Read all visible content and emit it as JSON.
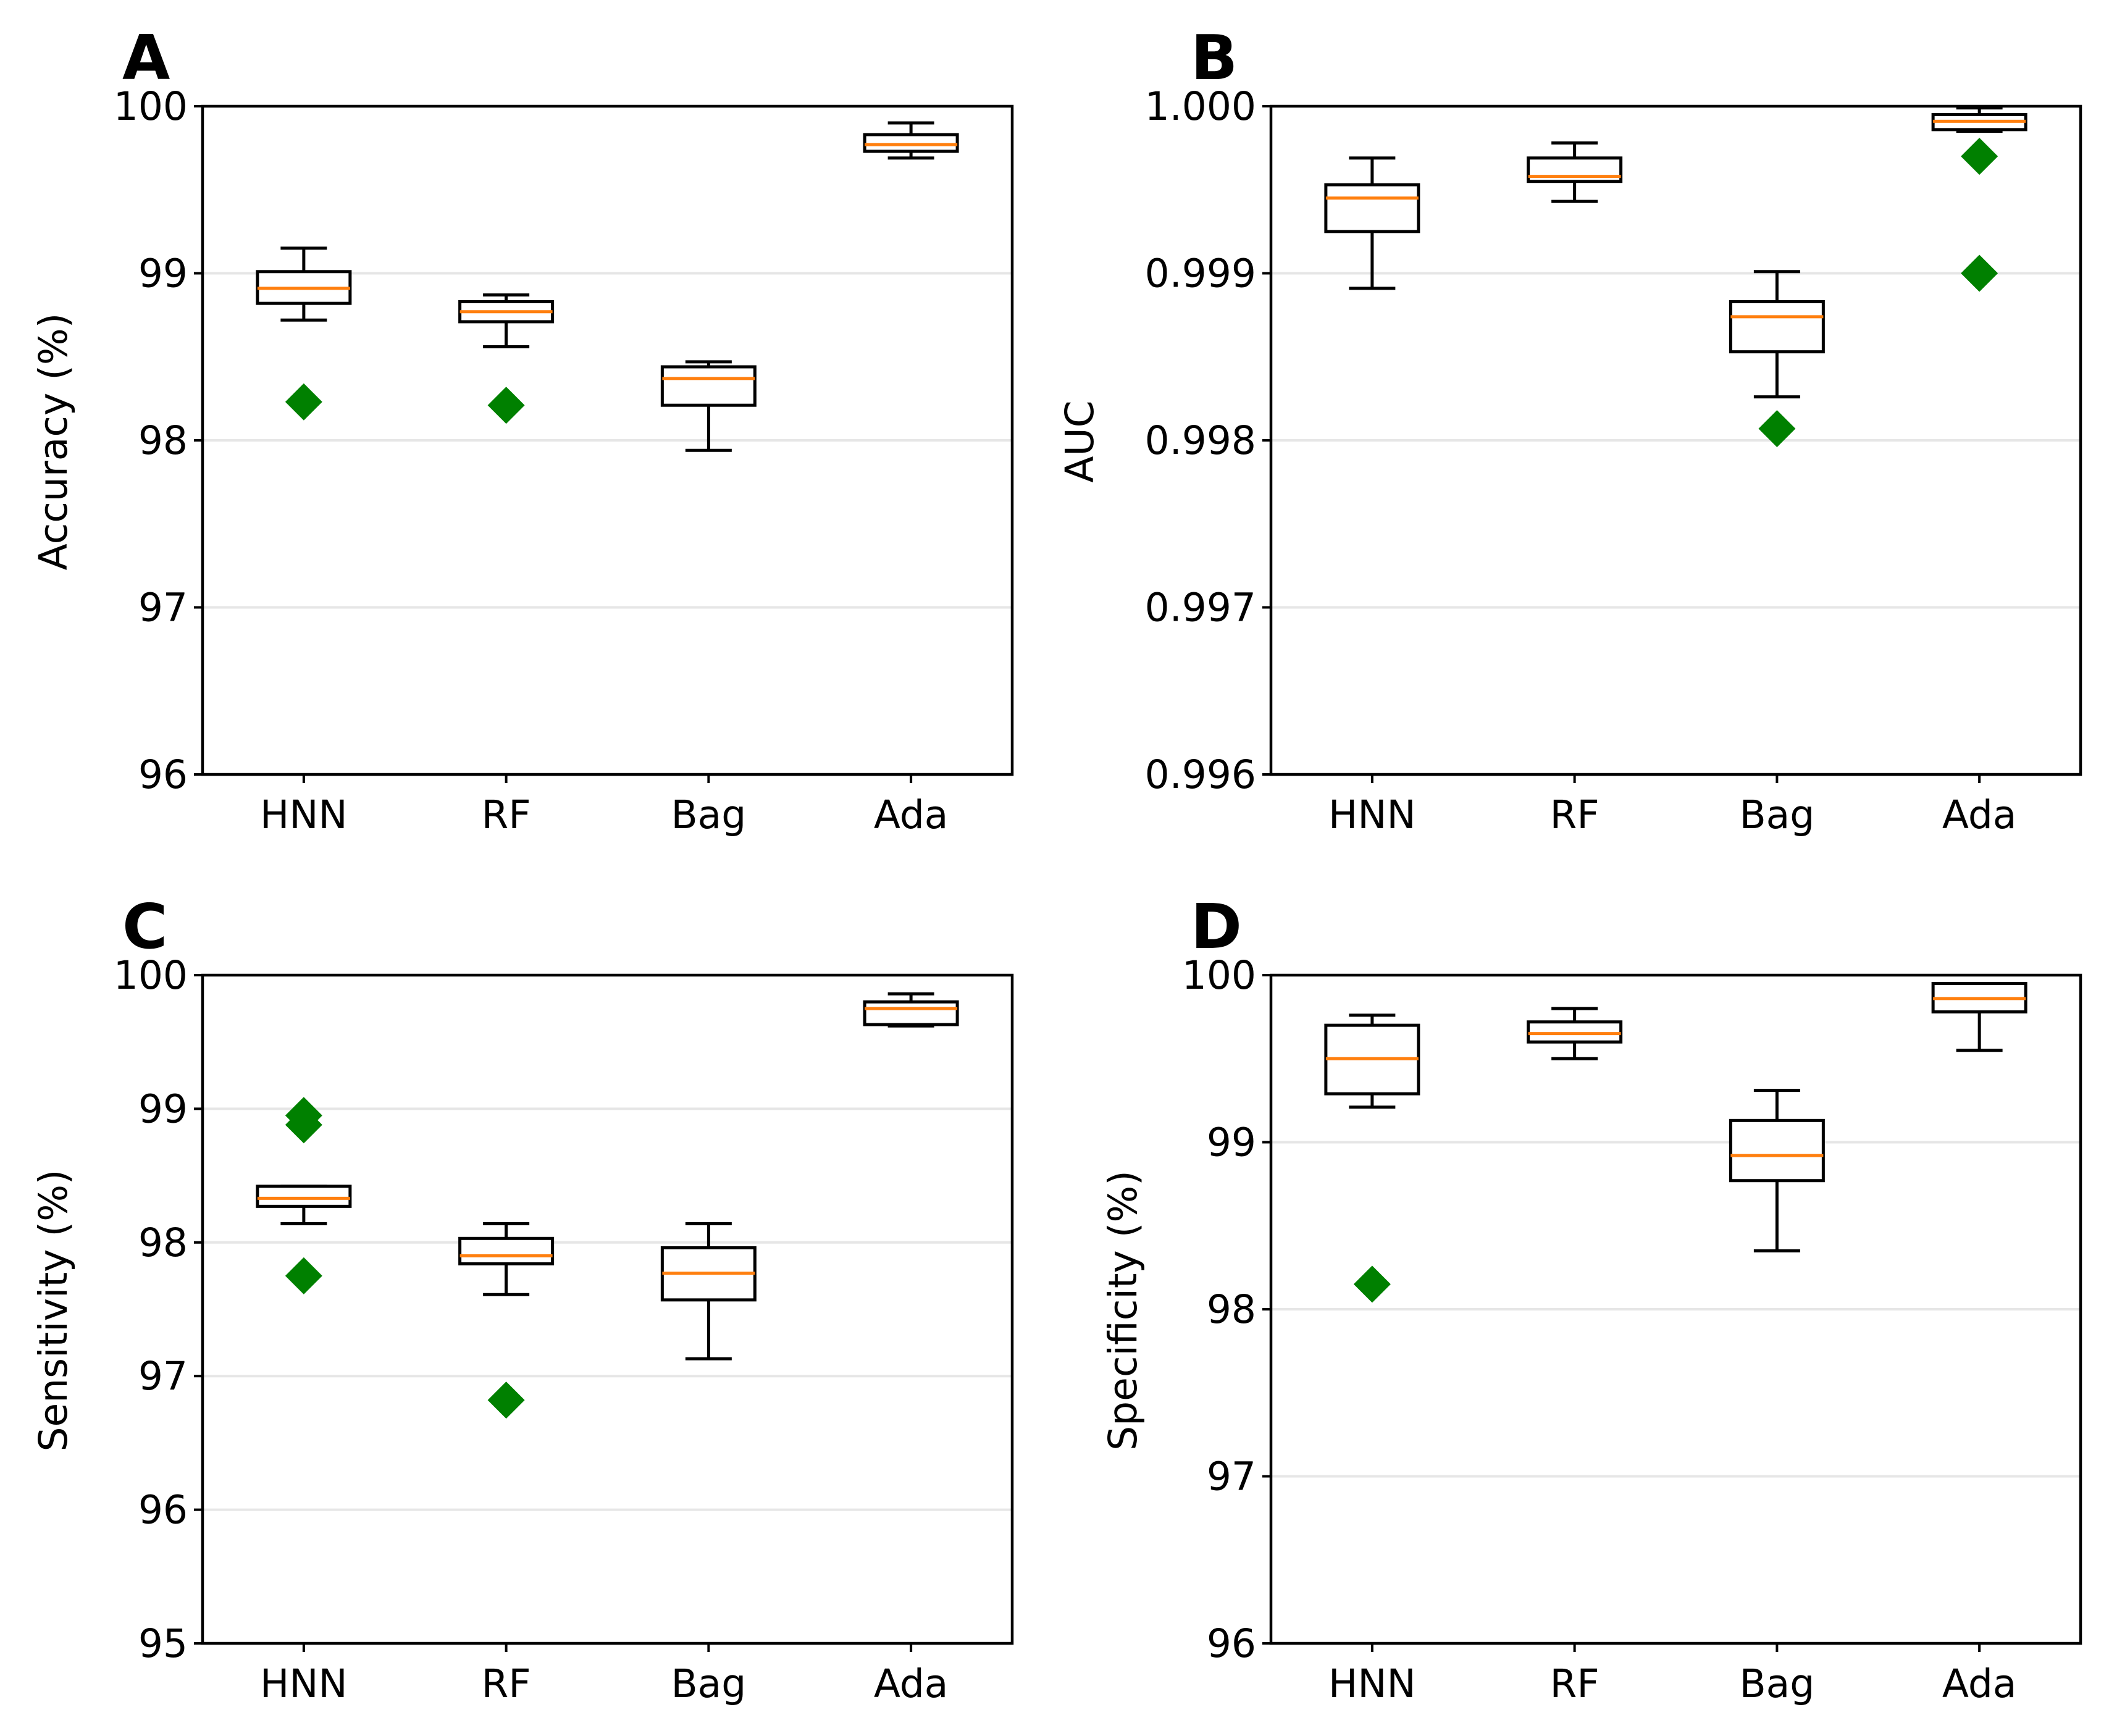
{
  "colors": {
    "median": "#ff7f0e",
    "flier": "#008000",
    "grid": "#e6e6e6"
  },
  "chart_data": [
    {
      "type": "box",
      "panel": "A",
      "ylabel": "Accuracy (%)",
      "categories": [
        "HNN",
        "RF",
        "Bag",
        "Ada"
      ],
      "ylim": [
        96,
        100
      ],
      "yticks": [
        96,
        97,
        98,
        99,
        100
      ],
      "ytick_labels": [
        "96",
        "97",
        "98",
        "99",
        "100"
      ],
      "grid": "horizontal",
      "boxes": [
        {
          "name": "HNN",
          "whislo": 98.72,
          "q1": 98.82,
          "med": 98.91,
          "q3": 99.01,
          "whishi": 99.15,
          "fliers": [
            98.23
          ]
        },
        {
          "name": "RF",
          "whislo": 98.56,
          "q1": 98.71,
          "med": 98.77,
          "q3": 98.83,
          "whishi": 98.87,
          "fliers": [
            98.21
          ]
        },
        {
          "name": "Bag",
          "whislo": 97.94,
          "q1": 98.21,
          "med": 98.37,
          "q3": 98.44,
          "whishi": 98.47,
          "fliers": []
        },
        {
          "name": "Ada",
          "whislo": 99.69,
          "q1": 99.73,
          "med": 99.77,
          "q3": 99.83,
          "whishi": 99.9,
          "fliers": []
        }
      ]
    },
    {
      "type": "box",
      "panel": "B",
      "ylabel": "AUC",
      "categories": [
        "HNN",
        "RF",
        "Bag",
        "Ada"
      ],
      "ylim": [
        0.996,
        1.0
      ],
      "yticks": [
        0.996,
        0.997,
        0.998,
        0.999,
        1.0
      ],
      "ytick_labels": [
        "0.996",
        "0.997",
        "0.998",
        "0.999",
        "1.000"
      ],
      "grid": "horizontal",
      "boxes": [
        {
          "name": "HNN",
          "whislo": 0.99891,
          "q1": 0.99925,
          "med": 0.99945,
          "q3": 0.99953,
          "whishi": 0.99969,
          "fliers": []
        },
        {
          "name": "RF",
          "whislo": 0.99943,
          "q1": 0.99955,
          "med": 0.99958,
          "q3": 0.99969,
          "whishi": 0.99978,
          "fliers": []
        },
        {
          "name": "Bag",
          "whislo": 0.99826,
          "q1": 0.99853,
          "med": 0.99874,
          "q3": 0.99883,
          "whishi": 0.99901,
          "fliers": [
            0.99807
          ]
        },
        {
          "name": "Ada",
          "whislo": 0.99985,
          "q1": 0.99986,
          "med": 0.99991,
          "q3": 0.99995,
          "whishi": 0.99999,
          "fliers": [
            0.9997,
            0.999
          ]
        }
      ]
    },
    {
      "type": "box",
      "panel": "C",
      "ylabel": "Sensitivity (%)",
      "categories": [
        "HNN",
        "RF",
        "Bag",
        "Ada"
      ],
      "ylim": [
        95,
        100
      ],
      "yticks": [
        95,
        96,
        97,
        98,
        99,
        100
      ],
      "ytick_labels": [
        "95",
        "96",
        "97",
        "98",
        "99",
        "100"
      ],
      "grid": "horizontal",
      "boxes": [
        {
          "name": "HNN",
          "whislo": 98.14,
          "q1": 98.27,
          "med": 98.33,
          "q3": 98.42,
          "whishi": 98.42,
          "fliers": [
            98.95,
            98.88,
            97.75
          ]
        },
        {
          "name": "RF",
          "whislo": 97.61,
          "q1": 97.84,
          "med": 97.9,
          "q3": 98.03,
          "whishi": 98.14,
          "fliers": [
            96.82
          ]
        },
        {
          "name": "Bag",
          "whislo": 97.13,
          "q1": 97.57,
          "med": 97.77,
          "q3": 97.96,
          "whishi": 98.14,
          "fliers": []
        },
        {
          "name": "Ada",
          "whislo": 99.62,
          "q1": 99.63,
          "med": 99.75,
          "q3": 99.8,
          "whishi": 99.86,
          "fliers": []
        }
      ]
    },
    {
      "type": "box",
      "panel": "D",
      "ylabel": "Specificity (%)",
      "categories": [
        "HNN",
        "RF",
        "Bag",
        "Ada"
      ],
      "ylim": [
        96,
        100
      ],
      "yticks": [
        96,
        97,
        98,
        99,
        100
      ],
      "ytick_labels": [
        "96",
        "97",
        "98",
        "99",
        "100"
      ],
      "grid": "horizontal",
      "boxes": [
        {
          "name": "HNN",
          "whislo": 99.21,
          "q1": 99.29,
          "med": 99.5,
          "q3": 99.7,
          "whishi": 99.76,
          "fliers": [
            98.15
          ]
        },
        {
          "name": "RF",
          "whislo": 99.5,
          "q1": 99.6,
          "med": 99.65,
          "q3": 99.72,
          "whishi": 99.8,
          "fliers": []
        },
        {
          "name": "Bag",
          "whislo": 98.35,
          "q1": 98.77,
          "med": 98.92,
          "q3": 99.13,
          "whishi": 99.31,
          "fliers": []
        },
        {
          "name": "Ada",
          "whislo": 99.55,
          "q1": 99.78,
          "med": 99.86,
          "q3": 99.95,
          "whishi": 99.95,
          "fliers": []
        }
      ]
    }
  ]
}
